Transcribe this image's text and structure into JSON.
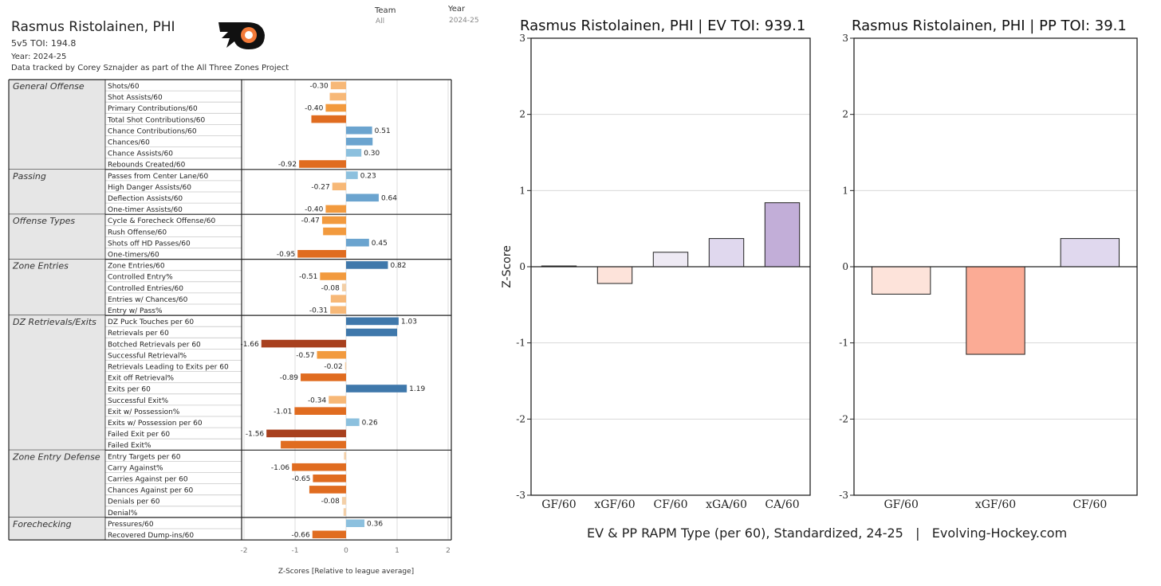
{
  "header": {
    "player": "Rasmus Ristolainen, PHI",
    "toi_line": "5v5 TOI: 194.8",
    "year_line": "Year: 2024-25",
    "tracked_line": "Data tracked by Corey Sznajder as part of the All Three Zones Project",
    "filters": [
      {
        "label": "Team",
        "value": "All"
      },
      {
        "label": "Year",
        "value": "2024-25"
      }
    ]
  },
  "colors": {
    "blue_light": "#8cc0de",
    "blue_mid": "#6ba4cf",
    "blue_dark": "#3f78ab",
    "orange_light": "#f7b877",
    "orange_mid": "#f29a3e",
    "orange_dark": "#e06c20",
    "red_dark": "#a8401e",
    "near_zero": "#f3cfa7",
    "ev_pos_light": "#eeeaf4",
    "ev_pos_mid": "#e0d8ee",
    "ev_pos_strong": "#c2aed8",
    "pp_neg_light": "#fde3da",
    "pp_neg_strong": "#fbab95"
  },
  "chart_data": [
    {
      "type": "bar",
      "orientation": "horizontal",
      "xlabel": "Z-Scores [Relative to league average]",
      "xlim": [
        -2,
        2
      ],
      "xticks": [
        "-2",
        "-1",
        "0",
        "1",
        "2"
      ],
      "groups": [
        {
          "name": "General Offense",
          "rows": [
            {
              "metric": "Shots/60",
              "value": -0.3,
              "label": "-0.30"
            },
            {
              "metric": "Shot Assists/60",
              "value": -0.32,
              "label": ""
            },
            {
              "metric": "Primary Contributions/60",
              "value": -0.4,
              "label": "-0.40"
            },
            {
              "metric": "Total Shot Contributions/60",
              "value": -0.68,
              "label": ""
            },
            {
              "metric": "Chance Contributions/60",
              "value": 0.51,
              "label": "0.51"
            },
            {
              "metric": "Chances/60",
              "value": 0.52,
              "label": ""
            },
            {
              "metric": "Chance Assists/60",
              "value": 0.3,
              "label": "0.30"
            },
            {
              "metric": "Rebounds Created/60",
              "value": -0.92,
              "label": "-0.92"
            }
          ]
        },
        {
          "name": "Passing",
          "rows": [
            {
              "metric": "Passes from Center Lane/60",
              "value": 0.23,
              "label": "0.23"
            },
            {
              "metric": "High Danger Assists/60",
              "value": -0.27,
              "label": "-0.27"
            },
            {
              "metric": "Deflection Assists/60",
              "value": 0.64,
              "label": "0.64"
            },
            {
              "metric": "One-timer Assists/60",
              "value": -0.4,
              "label": "-0.40"
            }
          ]
        },
        {
          "name": "Offense Types",
          "rows": [
            {
              "metric": "Cycle & Forecheck Offense/60",
              "value": -0.47,
              "label": "-0.47"
            },
            {
              "metric": "Rush Offense/60",
              "value": -0.45,
              "label": ""
            },
            {
              "metric": "Shots off HD Passes/60",
              "value": 0.45,
              "label": "0.45"
            },
            {
              "metric": "One-timers/60",
              "value": -0.95,
              "label": "-0.95"
            }
          ]
        },
        {
          "name": "Zone Entries",
          "rows": [
            {
              "metric": "Zone Entries/60",
              "value": 0.82,
              "label": "0.82"
            },
            {
              "metric": "Controlled Entry%",
              "value": -0.51,
              "label": "-0.51"
            },
            {
              "metric": "Controlled Entries/60",
              "value": -0.08,
              "label": "-0.08"
            },
            {
              "metric": "Entries w/ Chances/60",
              "value": -0.3,
              "label": ""
            },
            {
              "metric": "Entry w/ Pass%",
              "value": -0.31,
              "label": "-0.31"
            }
          ]
        },
        {
          "name": "DZ Retrievals/Exits",
          "rows": [
            {
              "metric": "DZ Puck Touches per 60",
              "value": 1.03,
              "label": "1.03"
            },
            {
              "metric": "Retrievals per 60",
              "value": 1.0,
              "label": ""
            },
            {
              "metric": "Botched Retrievals per 60",
              "value": -1.66,
              "label": "-1.66"
            },
            {
              "metric": "Successful Retrieval%",
              "value": -0.57,
              "label": "-0.57"
            },
            {
              "metric": "Retrievals Leading to Exits per 60",
              "value": -0.02,
              "label": "-0.02"
            },
            {
              "metric": "Exit off Retrieval%",
              "value": -0.89,
              "label": "-0.89"
            },
            {
              "metric": "Exits per 60",
              "value": 1.19,
              "label": "1.19"
            },
            {
              "metric": "Successful Exit%",
              "value": -0.34,
              "label": "-0.34"
            },
            {
              "metric": "Exit w/ Possession%",
              "value": -1.01,
              "label": "-1.01"
            },
            {
              "metric": "Exits w/ Possession per 60",
              "value": 0.26,
              "label": "0.26"
            },
            {
              "metric": "Failed Exit per 60",
              "value": -1.56,
              "label": "-1.56"
            },
            {
              "metric": "Failed Exit%",
              "value": -1.28,
              "label": ""
            }
          ]
        },
        {
          "name": "Zone Entry Defense",
          "rows": [
            {
              "metric": "Entry Targets per 60",
              "value": -0.04,
              "label": ""
            },
            {
              "metric": "Carry Against%",
              "value": -1.06,
              "label": "-1.06"
            },
            {
              "metric": "Carries Against per 60",
              "value": -0.65,
              "label": "-0.65"
            },
            {
              "metric": "Chances Against per 60",
              "value": -0.72,
              "label": ""
            },
            {
              "metric": "Denials per 60",
              "value": -0.08,
              "label": "-0.08"
            },
            {
              "metric": "Denial%",
              "value": -0.05,
              "label": ""
            }
          ]
        },
        {
          "name": "Forechecking",
          "rows": [
            {
              "metric": "Pressures/60",
              "value": 0.36,
              "label": "0.36"
            },
            {
              "metric": "Recovered Dump-ins/60",
              "value": -0.66,
              "label": "-0.66"
            }
          ]
        }
      ]
    },
    {
      "type": "bar",
      "title": "Rasmus Ristolainen, PHI  |  EV TOI: 939.1",
      "ylabel": "Z-Score",
      "ylim": [
        -3,
        3
      ],
      "yticks": [
        "3",
        "2",
        "1",
        "0",
        "-1",
        "-2",
        "-3"
      ],
      "categories": [
        "GF/60",
        "xGF/60",
        "CF/60",
        "xGA/60",
        "CA/60"
      ],
      "values": [
        0.01,
        -0.22,
        0.19,
        0.37,
        0.84
      ]
    },
    {
      "type": "bar",
      "title": "Rasmus Ristolainen, PHI  |  PP TOI: 39.1",
      "ylim": [
        -3,
        3
      ],
      "yticks": [
        "3",
        "2",
        "1",
        "0",
        "-1",
        "-2",
        "-3"
      ],
      "categories": [
        "GF/60",
        "xGF/60",
        "CF/60"
      ],
      "values": [
        -0.36,
        -1.15,
        0.37
      ]
    }
  ],
  "caption": "EV & PP RAPM Type (per 60), Standardized, 24-25   |   Evolving-Hockey.com"
}
